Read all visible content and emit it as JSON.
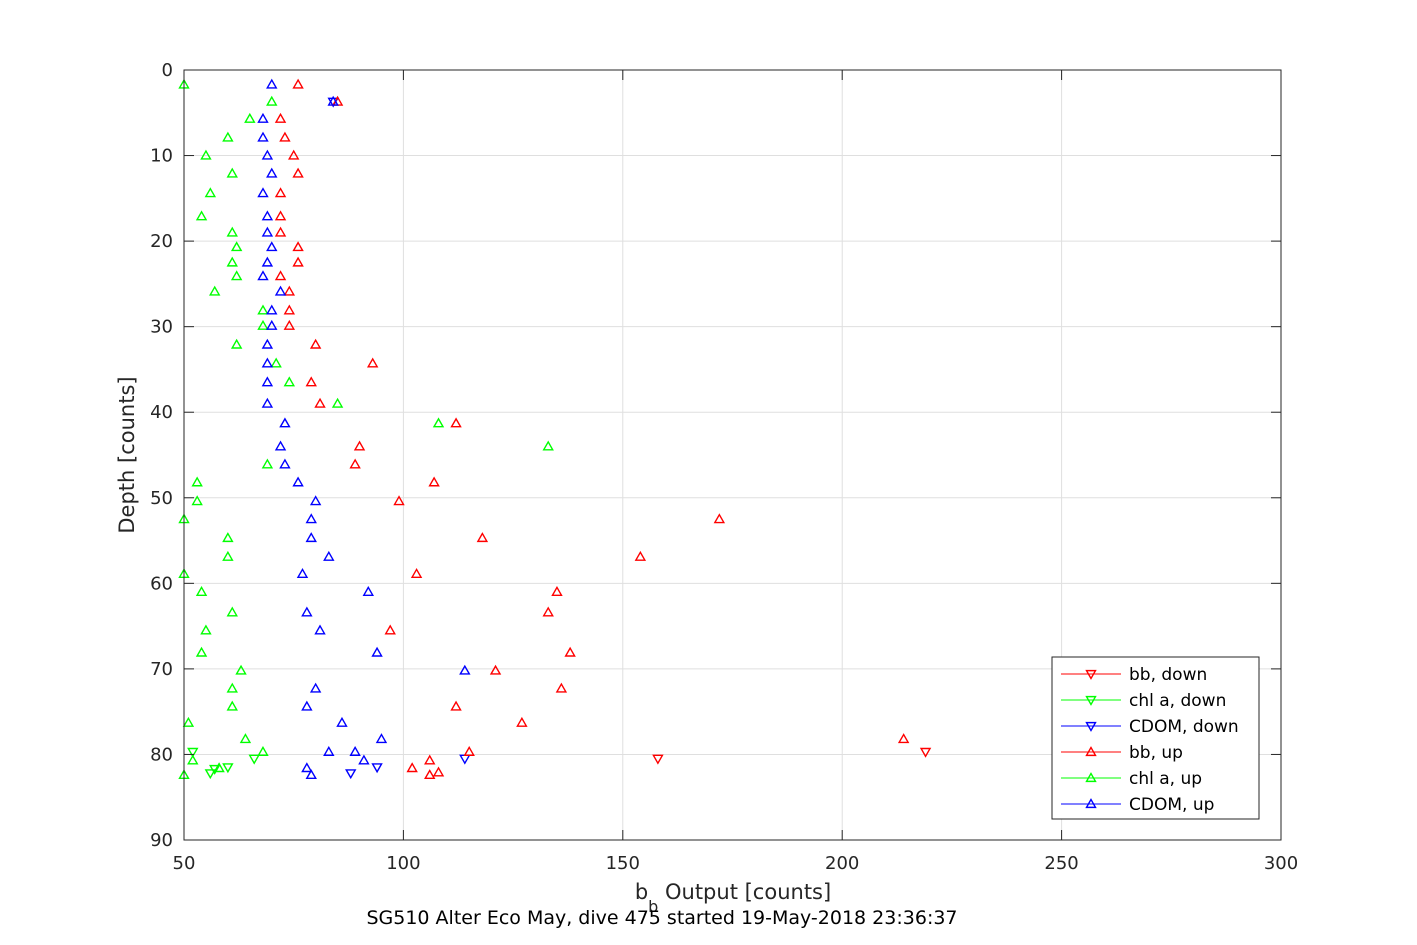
{
  "chart_data": {
    "type": "scatter",
    "caption": "SG510 Alter Eco May, dive 475 started 19-May-2018 23:36:37",
    "xlabel": {
      "main": "b",
      "sub": "b",
      "rest": " Output [counts]"
    },
    "ylabel": "Depth [counts]",
    "xlim": [
      50,
      300
    ],
    "ylim": [
      0,
      90
    ],
    "y_reversed": true,
    "grid": true,
    "legend_position": "bottom-right",
    "xticks": [
      "50",
      "100",
      "150",
      "200",
      "250",
      "300"
    ],
    "yticks": [
      "0",
      "10",
      "20",
      "30",
      "40",
      "50",
      "60",
      "70",
      "80",
      "90"
    ],
    "series": [
      {
        "name": "bb, down",
        "color": "#ff0000",
        "marker": "triangle-down",
        "points": [
          [
            219,
            79.7
          ],
          [
            158,
            80.5
          ]
        ]
      },
      {
        "name": "chl a, down",
        "color": "#00ff00",
        "marker": "triangle-down",
        "points": [
          [
            52,
            79.7
          ],
          [
            66,
            80.5
          ],
          [
            60,
            81.5
          ],
          [
            57,
            81.7
          ],
          [
            56,
            82.2
          ]
        ]
      },
      {
        "name": "CDOM, down",
        "color": "#0000ff",
        "marker": "triangle-down",
        "points": [
          [
            84,
            3.7
          ],
          [
            114,
            80.5
          ],
          [
            94,
            81.5
          ],
          [
            88,
            82.2
          ]
        ]
      },
      {
        "name": "bb, up",
        "color": "#ff0000",
        "marker": "triangle-up",
        "points": [
          [
            76,
            1.7
          ],
          [
            85,
            3.7
          ],
          [
            72,
            5.7
          ],
          [
            73,
            7.9
          ],
          [
            75,
            10
          ],
          [
            76,
            12.1
          ],
          [
            72,
            14.4
          ],
          [
            72,
            17.1
          ],
          [
            72,
            19
          ],
          [
            76,
            20.7
          ],
          [
            76,
            22.5
          ],
          [
            72,
            24.1
          ],
          [
            74,
            25.9
          ],
          [
            74,
            28.1
          ],
          [
            74,
            29.9
          ],
          [
            80,
            32.1
          ],
          [
            93,
            34.3
          ],
          [
            79,
            36.5
          ],
          [
            81,
            39
          ],
          [
            112,
            41.3
          ],
          [
            90,
            44
          ],
          [
            89,
            46.1
          ],
          [
            107,
            48.2
          ],
          [
            99,
            50.4
          ],
          [
            172,
            52.5
          ],
          [
            118,
            54.7
          ],
          [
            154,
            56.9
          ],
          [
            103,
            58.9
          ],
          [
            135,
            61
          ],
          [
            133,
            63.4
          ],
          [
            97,
            65.5
          ],
          [
            138,
            68.1
          ],
          [
            121,
            70.2
          ],
          [
            136,
            72.3
          ],
          [
            112,
            74.4
          ],
          [
            127,
            76.3
          ],
          [
            214,
            78.2
          ],
          [
            115,
            79.7
          ],
          [
            106,
            80.7
          ],
          [
            102,
            81.6
          ],
          [
            108,
            82.1
          ],
          [
            106,
            82.4
          ]
        ]
      },
      {
        "name": "chl a, up",
        "color": "#00ff00",
        "marker": "triangle-up",
        "points": [
          [
            50,
            1.7
          ],
          [
            70,
            3.7
          ],
          [
            65,
            5.7
          ],
          [
            60,
            7.9
          ],
          [
            55,
            10
          ],
          [
            61,
            12.1
          ],
          [
            56,
            14.4
          ],
          [
            54,
            17.1
          ],
          [
            61,
            19
          ],
          [
            62,
            20.7
          ],
          [
            61,
            22.5
          ],
          [
            62,
            24.1
          ],
          [
            57,
            25.9
          ],
          [
            68,
            28.1
          ],
          [
            68,
            29.9
          ],
          [
            62,
            32.1
          ],
          [
            71,
            34.3
          ],
          [
            74,
            36.5
          ],
          [
            85,
            39
          ],
          [
            108,
            41.3
          ],
          [
            133,
            44
          ],
          [
            69,
            46.1
          ],
          [
            53,
            48.2
          ],
          [
            53,
            50.4
          ],
          [
            50,
            52.5
          ],
          [
            60,
            54.7
          ],
          [
            60,
            56.9
          ],
          [
            50,
            58.9
          ],
          [
            54,
            61
          ],
          [
            61,
            63.4
          ],
          [
            55,
            65.5
          ],
          [
            54,
            68.1
          ],
          [
            63,
            70.2
          ],
          [
            61,
            72.3
          ],
          [
            61,
            74.4
          ],
          [
            51,
            76.3
          ],
          [
            64,
            78.2
          ],
          [
            68,
            79.7
          ],
          [
            52,
            80.7
          ],
          [
            58,
            81.6
          ],
          [
            50,
            82.4
          ]
        ]
      },
      {
        "name": "CDOM, up",
        "color": "#0000ff",
        "marker": "triangle-up",
        "points": [
          [
            70,
            1.7
          ],
          [
            84,
            3.7
          ],
          [
            68,
            5.7
          ],
          [
            68,
            7.9
          ],
          [
            69,
            10
          ],
          [
            70,
            12.1
          ],
          [
            68,
            14.4
          ],
          [
            69,
            17.1
          ],
          [
            69,
            19
          ],
          [
            70,
            20.7
          ],
          [
            69,
            22.5
          ],
          [
            68,
            24.1
          ],
          [
            72,
            25.9
          ],
          [
            70,
            28.1
          ],
          [
            70,
            29.9
          ],
          [
            69,
            32.1
          ],
          [
            69,
            34.3
          ],
          [
            69,
            36.5
          ],
          [
            69,
            39
          ],
          [
            73,
            41.3
          ],
          [
            72,
            44
          ],
          [
            73,
            46.1
          ],
          [
            76,
            48.2
          ],
          [
            80,
            50.4
          ],
          [
            79,
            52.5
          ],
          [
            79,
            54.7
          ],
          [
            83,
            56.9
          ],
          [
            77,
            58.9
          ],
          [
            92,
            61
          ],
          [
            78,
            63.4
          ],
          [
            81,
            65.5
          ],
          [
            94,
            68.1
          ],
          [
            114,
            70.2
          ],
          [
            80,
            72.3
          ],
          [
            78,
            74.4
          ],
          [
            86,
            76.3
          ],
          [
            95,
            78.2
          ],
          [
            83,
            79.7
          ],
          [
            89,
            79.7
          ],
          [
            91,
            80.7
          ],
          [
            78,
            81.6
          ],
          [
            79,
            82.4
          ]
        ]
      }
    ]
  }
}
